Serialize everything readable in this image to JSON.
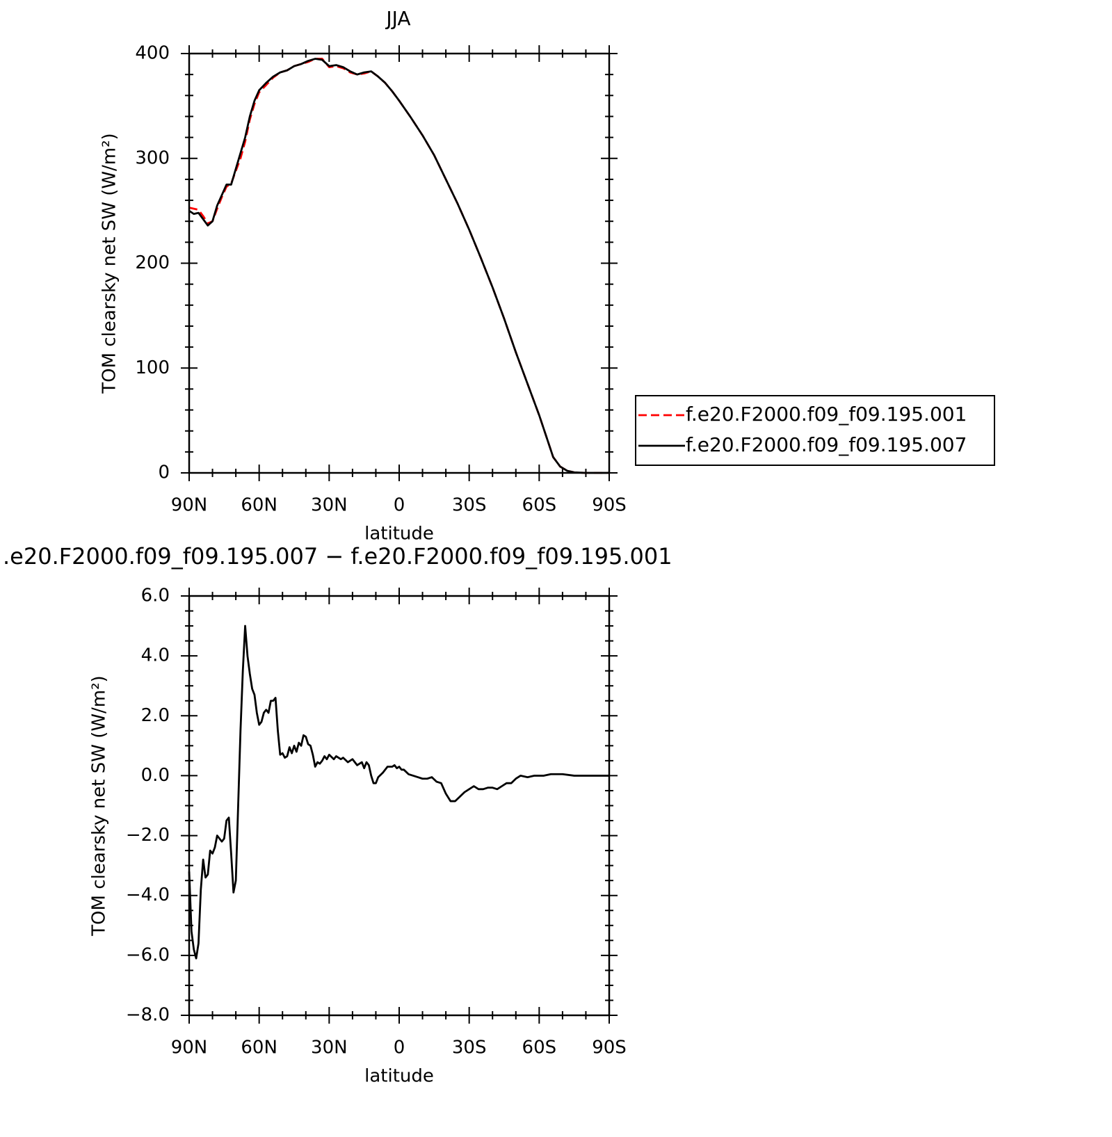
{
  "chart_data": [
    {
      "type": "line",
      "title": "JJA",
      "xlabel": "latitude",
      "ylabel": "TOM clearsky net SW (W/m²)",
      "x": [
        90,
        88,
        86,
        84,
        82,
        80,
        78,
        76,
        74,
        72,
        70,
        68,
        66,
        64,
        62,
        60,
        57,
        54,
        51,
        48,
        45,
        42,
        39,
        36,
        33,
        30,
        27,
        24,
        21,
        18,
        15,
        12,
        9,
        6,
        3,
        0,
        -5,
        -10,
        -15,
        -20,
        -25,
        -30,
        -35,
        -40,
        -45,
        -50,
        -55,
        -60,
        -63,
        -66,
        -69,
        -72,
        -75,
        -80,
        -90
      ],
      "series": [
        {
          "name": "f.e20.F2000.f09_f09.195.001",
          "color": "#ff0000",
          "dash": true,
          "values": [
            253,
            252,
            251,
            245,
            238,
            240,
            252,
            263,
            273,
            276,
            288,
            300,
            316,
            337,
            352,
            363,
            370,
            377,
            382,
            384,
            388,
            390,
            392,
            395,
            395,
            387,
            388,
            386,
            382,
            380,
            381,
            383,
            378,
            372,
            364,
            355,
            339,
            322,
            303,
            280,
            257,
            232,
            205,
            177,
            147,
            115,
            85,
            55,
            35,
            15,
            6,
            2,
            0.5,
            0,
            0
          ]
        },
        {
          "name": "f.e20.F2000.f09_f09.195.007",
          "color": "#000000",
          "dash": false,
          "values": [
            250,
            247,
            248,
            242,
            236,
            240,
            255,
            265,
            275,
            275,
            290,
            305,
            320,
            340,
            355,
            365,
            372,
            378,
            382,
            384,
            388,
            390,
            393,
            395,
            394,
            388,
            389,
            387,
            383,
            380,
            382,
            383,
            378,
            372,
            364,
            355,
            339,
            322,
            303,
            280,
            257,
            232,
            205,
            177,
            147,
            115,
            85,
            55,
            35,
            15,
            6,
            2,
            0.5,
            0,
            0
          ]
        }
      ],
      "xlim": [
        90,
        -90
      ],
      "xticks": [
        {
          "value": 90,
          "label": "90N"
        },
        {
          "value": 60,
          "label": "60N"
        },
        {
          "value": 30,
          "label": "30N"
        },
        0,
        {
          "value": -30,
          "label": "30S"
        },
        {
          "value": -60,
          "label": "60S"
        },
        {
          "value": -90,
          "label": "90S"
        }
      ],
      "ylim": [
        0,
        400
      ],
      "yticks": [
        0,
        100,
        200,
        300,
        400
      ],
      "legend": "outside right"
    },
    {
      "type": "line",
      "title": ".e20.F2000.f09_f09.195.007 − f.e20.F2000.f09_f09.195.001",
      "xlabel": "latitude",
      "ylabel": "TOM clearsky net SW (W/m²)",
      "x": [
        90,
        89,
        88,
        87,
        86,
        85,
        84,
        83,
        82,
        81,
        80,
        79,
        78,
        76,
        75,
        74,
        73,
        72,
        71,
        70,
        69,
        68,
        67,
        66,
        65,
        64,
        63,
        62,
        61,
        60,
        59,
        58,
        57,
        56,
        55,
        54,
        53,
        52,
        51,
        50,
        49,
        48,
        47,
        46,
        45,
        44,
        43,
        42,
        41,
        40,
        39,
        38,
        37,
        36,
        35,
        34,
        33,
        32,
        31,
        30,
        28,
        27,
        25,
        24,
        22,
        20,
        18,
        16,
        15,
        14,
        13,
        12,
        11,
        10,
        9,
        7,
        5,
        3,
        2,
        1,
        0,
        -1,
        -2,
        -4,
        -6,
        -8,
        -10,
        -12,
        -14,
        -16,
        -18,
        -20,
        -22,
        -24,
        -26,
        -28,
        -30,
        -32,
        -34,
        -36,
        -38,
        -40,
        -42,
        -44,
        -46,
        -48,
        -50,
        -52,
        -55,
        -58,
        -62,
        -65,
        -70,
        -75,
        -90
      ],
      "values": [
        -3.2,
        -5.2,
        -5.8,
        -6.1,
        -5.6,
        -3.8,
        -2.8,
        -3.4,
        -3.3,
        -2.5,
        -2.6,
        -2.4,
        -2.0,
        -2.2,
        -2.1,
        -1.5,
        -1.4,
        -2.6,
        -3.9,
        -3.5,
        -1.0,
        1.5,
        3.5,
        5.0,
        4.0,
        3.4,
        2.9,
        2.7,
        2.1,
        1.7,
        1.8,
        2.1,
        2.2,
        2.1,
        2.5,
        2.5,
        2.6,
        1.5,
        0.7,
        0.75,
        0.6,
        0.65,
        0.95,
        0.75,
        1.0,
        0.8,
        1.1,
        1.0,
        1.35,
        1.3,
        1.05,
        1.0,
        0.7,
        0.3,
        0.45,
        0.4,
        0.5,
        0.65,
        0.55,
        0.7,
        0.55,
        0.65,
        0.55,
        0.6,
        0.45,
        0.55,
        0.35,
        0.45,
        0.25,
        0.45,
        0.35,
        0.0,
        -0.25,
        -0.25,
        -0.05,
        0.1,
        0.3,
        0.3,
        0.35,
        0.25,
        0.3,
        0.2,
        0.2,
        0.05,
        0.0,
        -0.05,
        -0.1,
        -0.1,
        -0.05,
        -0.2,
        -0.25,
        -0.6,
        -0.85,
        -0.85,
        -0.7,
        -0.55,
        -0.45,
        -0.35,
        -0.45,
        -0.45,
        -0.4,
        -0.4,
        -0.45,
        -0.35,
        -0.25,
        -0.25,
        -0.1,
        0.0,
        -0.05,
        0.0,
        0.0,
        0.05,
        0.05,
        0.0,
        0.0
      ],
      "color": "#000000",
      "xlim": [
        90,
        -90
      ],
      "xticks": [
        {
          "value": 90,
          "label": "90N"
        },
        {
          "value": 60,
          "label": "60N"
        },
        {
          "value": 30,
          "label": "30N"
        },
        0,
        {
          "value": -30,
          "label": "30S"
        },
        {
          "value": -60,
          "label": "60S"
        },
        {
          "value": -90,
          "label": "90S"
        }
      ],
      "ylim": [
        -8,
        6
      ],
      "yticks": [
        {
          "value": -8,
          "label": "−8.0"
        },
        {
          "value": -6,
          "label": "−6.0"
        },
        {
          "value": -4,
          "label": "−4.0"
        },
        {
          "value": -2,
          "label": "−2.0"
        },
        {
          "value": 0,
          "label": "0.0"
        },
        {
          "value": 2,
          "label": "2.0"
        },
        {
          "value": 4,
          "label": "4.0"
        },
        {
          "value": 6,
          "label": "6.0"
        }
      ]
    }
  ]
}
